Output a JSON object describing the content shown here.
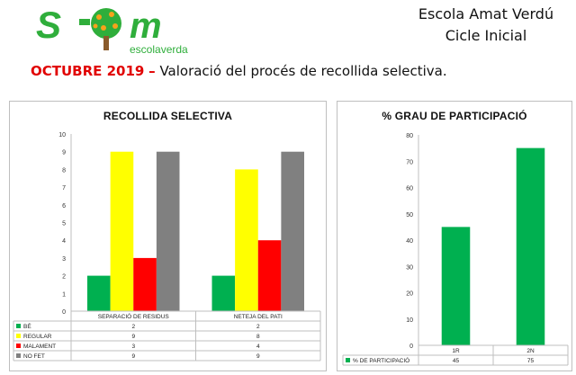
{
  "header": {
    "logo_text": "S  m",
    "logo_subtitle": "escolaverda",
    "school": "Escola Amat Verdú",
    "cycle": "Cicle Inicial",
    "month": "OCTUBRE 2019",
    "separator": "–",
    "description": "Valoració del procés de recollida selectiva."
  },
  "colors": {
    "green": "#00b050",
    "yellow": "#ffff00",
    "red": "#ff0000",
    "gray": "#808080",
    "logo_green": "#2fae3b",
    "logo_orange": "#f7a21b"
  },
  "chart_data": [
    {
      "type": "bar",
      "title": "RECOLLIDA SELECTIVA",
      "categories": [
        "SEPARACIÓ DE RESIDUS",
        "NETEJA DEL PATI"
      ],
      "series": [
        {
          "name": "BÉ",
          "values": [
            2,
            2
          ],
          "color": "#00b050"
        },
        {
          "name": "REGULAR",
          "values": [
            9,
            8
          ],
          "color": "#ffff00"
        },
        {
          "name": "MALAMENT",
          "values": [
            3,
            4
          ],
          "color": "#ff0000"
        },
        {
          "name": "NO FET",
          "values": [
            9,
            9
          ],
          "color": "#808080"
        }
      ],
      "ylim": [
        0,
        10
      ],
      "yticks": [
        0,
        1,
        2,
        3,
        4,
        5,
        6,
        7,
        8,
        9,
        10
      ],
      "grid": false,
      "legend": "data-table"
    },
    {
      "type": "bar",
      "title": "% GRAU DE PARTICIPACIÓ",
      "categories": [
        "1R",
        "2N"
      ],
      "series": [
        {
          "name": "% DE PARTICIPACIÓ",
          "values": [
            45,
            75
          ],
          "color": "#00b050"
        }
      ],
      "ylim": [
        0,
        80
      ],
      "yticks": [
        0,
        10,
        20,
        30,
        40,
        50,
        60,
        70,
        80
      ],
      "grid": false,
      "legend": "data-table"
    }
  ]
}
